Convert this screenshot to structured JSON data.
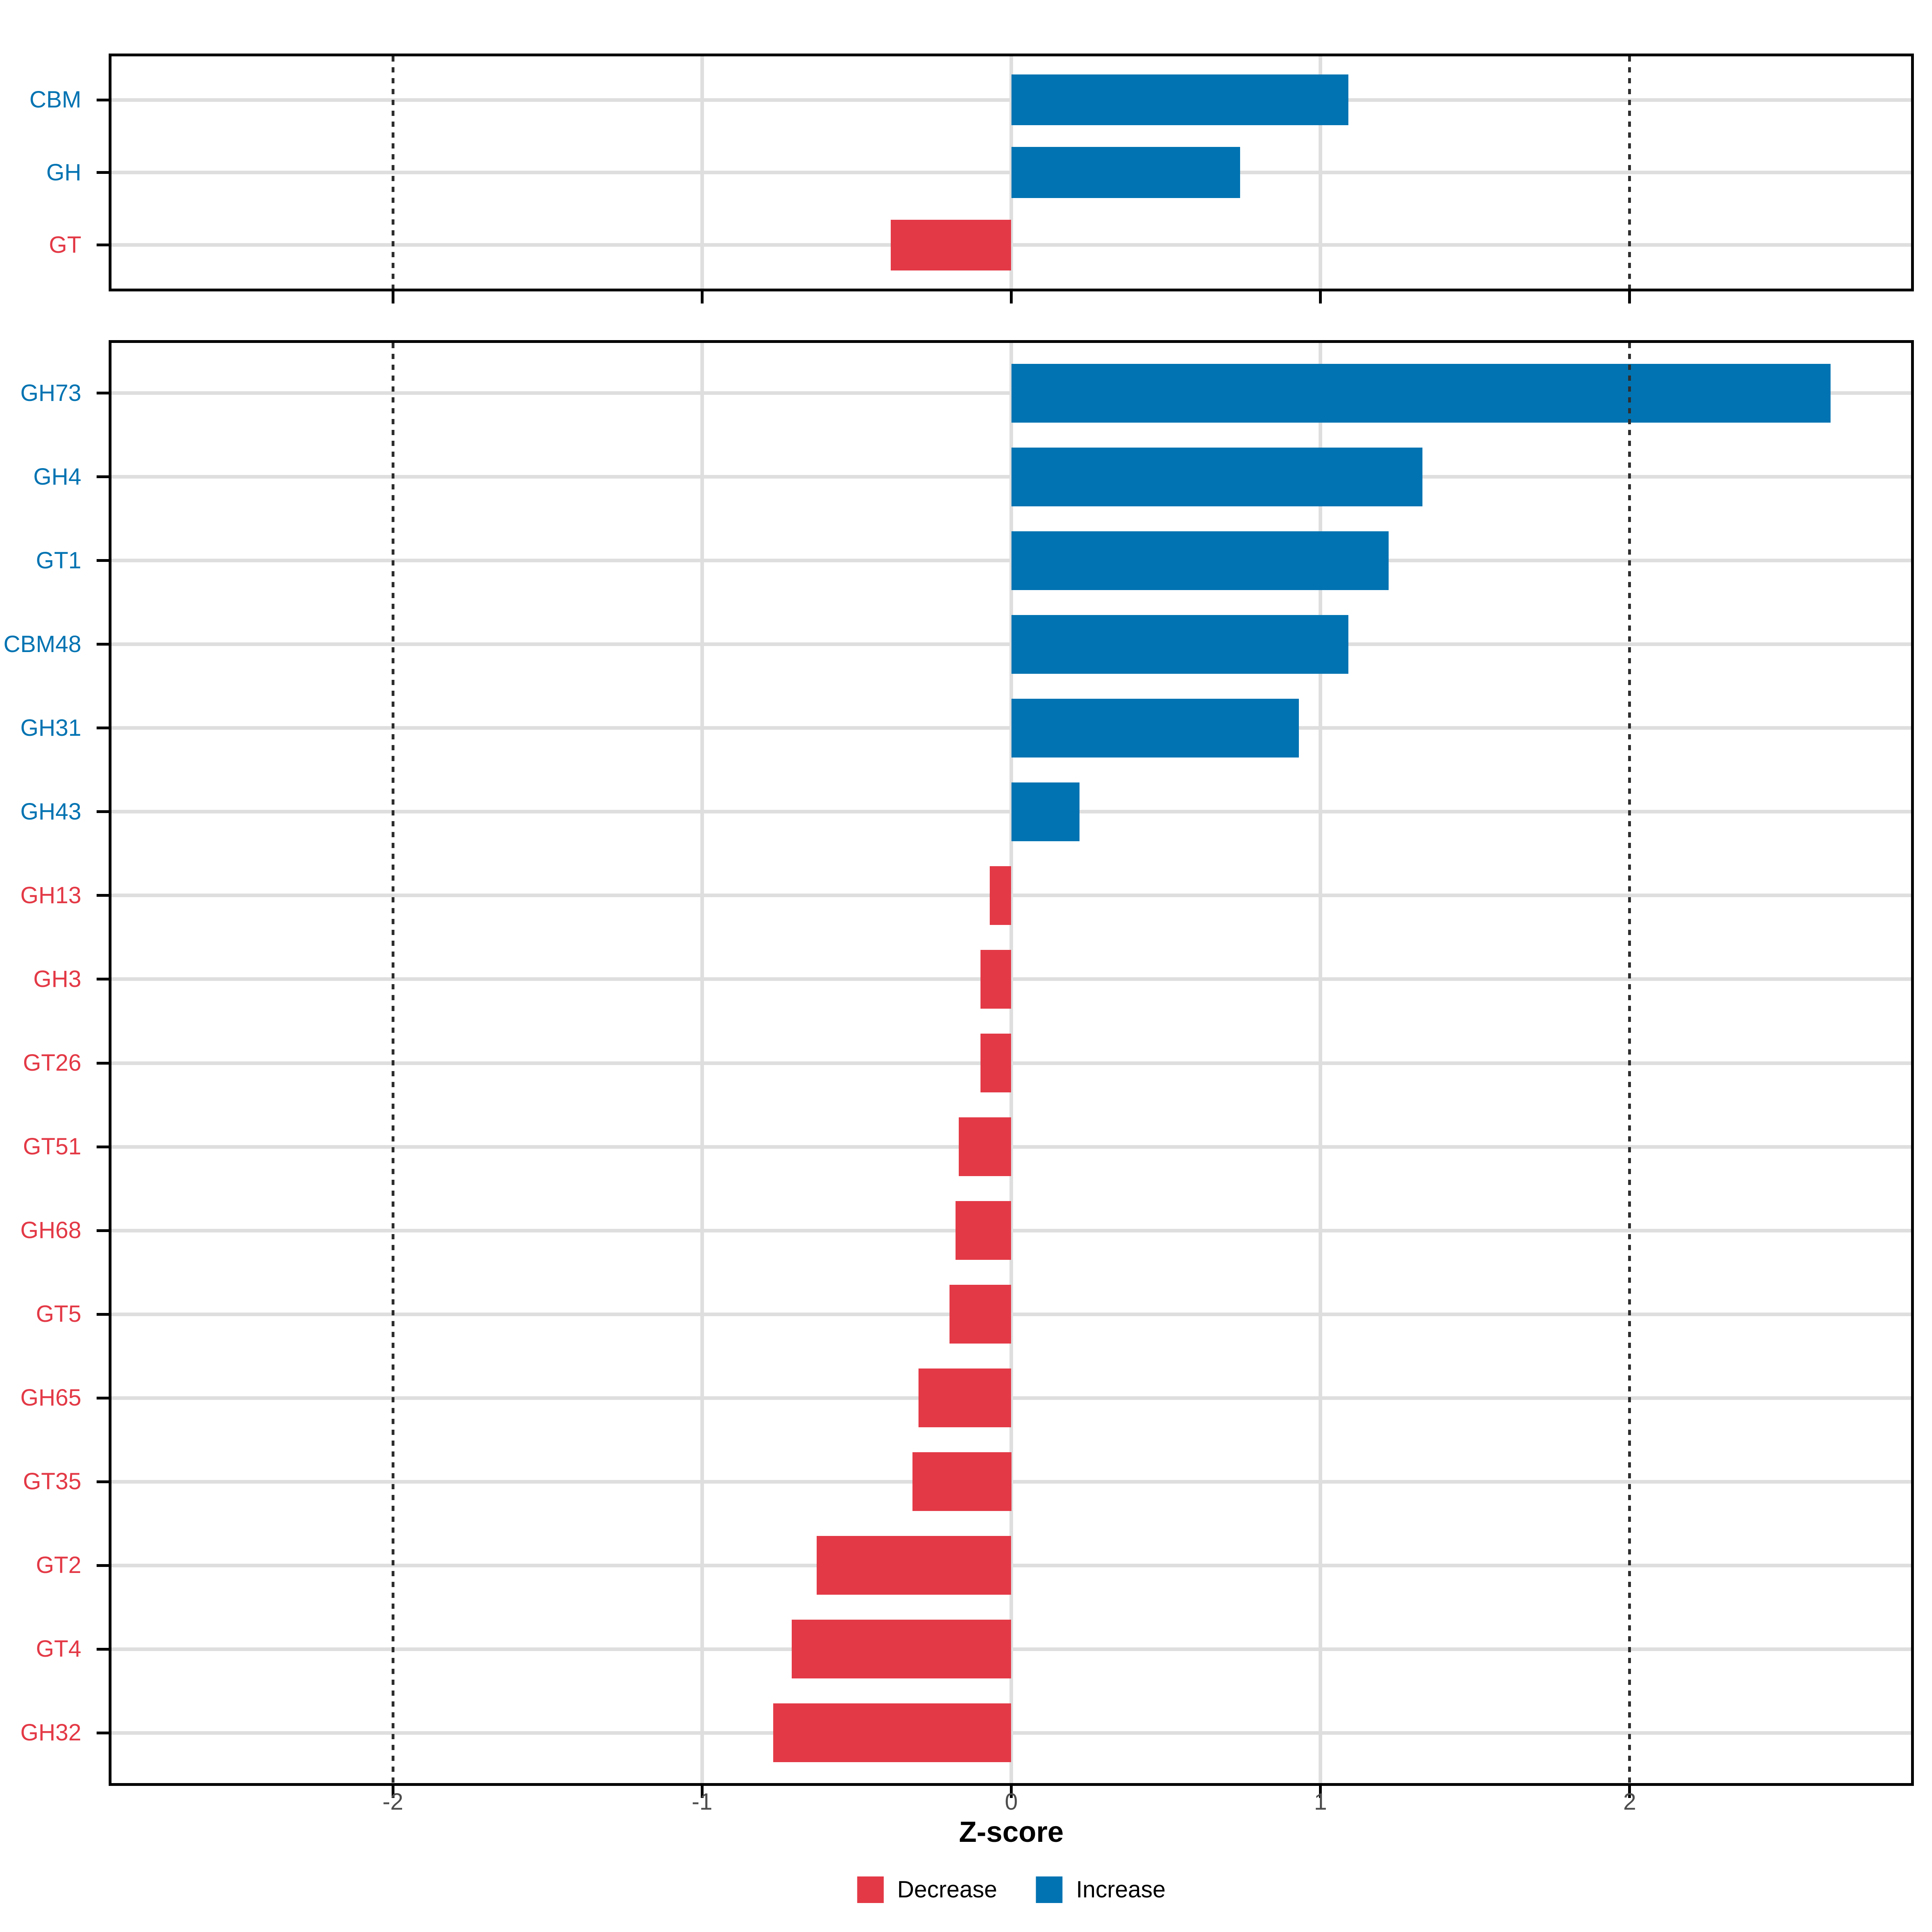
{
  "chart_data": {
    "type": "bar",
    "orientation": "horizontal",
    "xlabel": "Z-score",
    "x_ticks": [
      "-2",
      "-1",
      "0",
      "1",
      "2"
    ],
    "x_tick_values": [
      -2,
      -1,
      0,
      1,
      2
    ],
    "x_range": [
      -2.91,
      2.91
    ],
    "grid_x_values": [
      -1,
      0,
      1
    ],
    "dashed_reference_x": [
      -2,
      2
    ],
    "grid": "on",
    "legend_position": "bottom-center",
    "colors": {
      "increase": "#0173B2",
      "decrease": "#E33946"
    },
    "legend": [
      {
        "label": "Decrease",
        "color": "#E33946"
      },
      {
        "label": "Increase",
        "color": "#0173B2"
      }
    ],
    "panels": [
      {
        "name": "enzyme-class-summary",
        "categories": [
          "CBM",
          "GH",
          "GT"
        ],
        "values": [
          1.09,
          0.74,
          -0.39
        ],
        "directions": [
          "Increase",
          "Increase",
          "Decrease"
        ]
      },
      {
        "name": "enzyme-families",
        "categories": [
          "GH73",
          "GH4",
          "GT1",
          "CBM48",
          "GH31",
          "GH43",
          "GH13",
          "GH3",
          "GT26",
          "GT51",
          "GH68",
          "GT5",
          "GH65",
          "GT35",
          "GT2",
          "GT4",
          "GH32"
        ],
        "values": [
          2.65,
          1.33,
          1.22,
          1.09,
          0.93,
          0.22,
          -0.07,
          -0.1,
          -0.1,
          -0.17,
          -0.18,
          -0.2,
          -0.3,
          -0.32,
          -0.63,
          -0.71,
          -0.77
        ],
        "directions": [
          "Increase",
          "Increase",
          "Increase",
          "Increase",
          "Increase",
          "Increase",
          "Decrease",
          "Decrease",
          "Decrease",
          "Decrease",
          "Decrease",
          "Decrease",
          "Decrease",
          "Decrease",
          "Decrease",
          "Decrease",
          "Decrease"
        ]
      }
    ]
  }
}
